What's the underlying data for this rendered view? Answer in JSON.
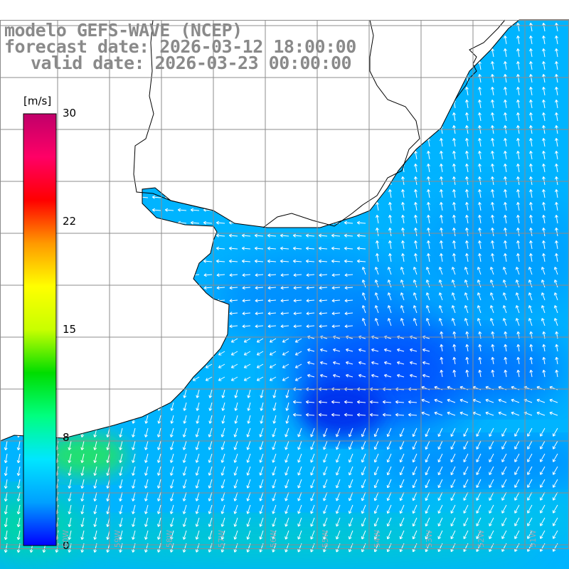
{
  "title": {
    "line1": "modelo GEFS-WAVE (NCEP)",
    "line2": "forecast date: 2026-03-12 18:00:00",
    "line3": "valid date: 2026-03-23 00:00:00"
  },
  "colorbar": {
    "units": "[m/s]",
    "ticks": [
      "30",
      "22",
      "15",
      "8",
      "0"
    ],
    "tick_values": [
      30,
      22,
      15,
      8,
      0
    ],
    "min": 0,
    "max": 30,
    "colors": [
      "#0000ff",
      "#00a0ff",
      "#00e6ff",
      "#00ff80",
      "#00dd00",
      "#c8ff00",
      "#ffff00",
      "#ff9900",
      "#ff0000",
      "#ff0066",
      "#c0006a"
    ]
  },
  "colors": {
    "ocean_base": "#00b4ff",
    "calm_area": "#0055ff",
    "strong_wind_area": "#22dd66",
    "land": "#ffffff",
    "coastline": "#000000",
    "grid": "#8c8c8c",
    "arrow": "#ffffff"
  },
  "map": {
    "lon_labels": [
      "60W",
      "59W",
      "58W",
      "57W",
      "56W",
      "55W",
      "54W",
      "53W",
      "52W",
      "51W",
      "50W"
    ]
  }
}
